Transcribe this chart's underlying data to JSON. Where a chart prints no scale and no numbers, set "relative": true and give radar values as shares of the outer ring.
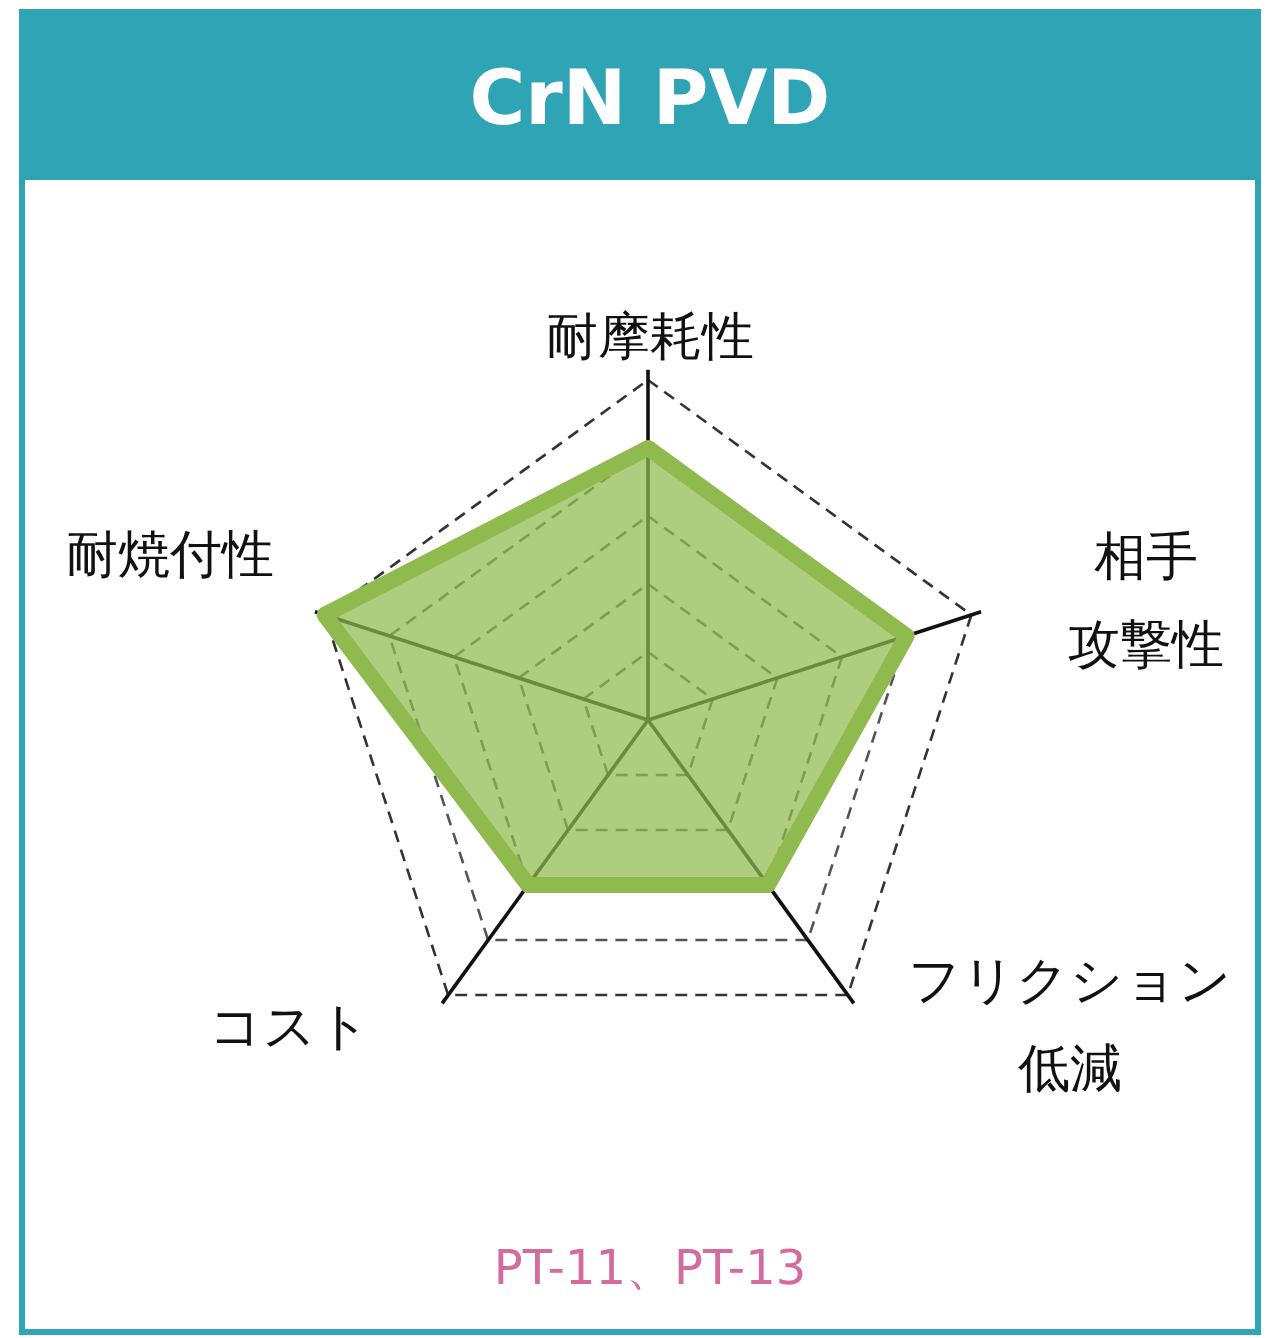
{
  "chart_data": {
    "type": "radar",
    "title": "CrN PVD",
    "categories": [
      "耐摩耗性",
      "相手攻撃性",
      "フリクション低減",
      "コスト",
      "耐焼付性"
    ],
    "relative": true,
    "grid": true,
    "series": [
      {
        "color": "#8fba4e",
        "values": [
          0.8,
          0.8,
          0.6,
          0.6,
          1.0
        ]
      }
    ],
    "annotations": [
      "PT-11、PT-13"
    ]
  }
}
